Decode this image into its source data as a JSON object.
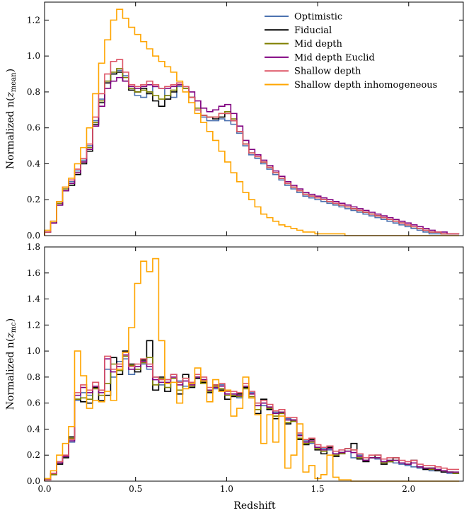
{
  "chart_data": [
    {
      "type": "line",
      "step": true,
      "ylabel_text": "Normalized n(",
      "ylabel_var": "z",
      "ylabel_sub": "mean",
      "ylabel_close": ")",
      "xlim": [
        0.0,
        2.3
      ],
      "ylim": [
        0.0,
        1.3
      ],
      "xticks": [
        0.0,
        0.5,
        1.0,
        1.5,
        2.0
      ],
      "yticks": [
        0.0,
        0.2,
        0.4,
        0.6,
        0.8,
        1.0,
        1.2
      ],
      "yticklabels": [
        "0.0",
        "0.2",
        "0.4",
        "0.6",
        "0.8",
        "1.0",
        "1.2"
      ],
      "bin_width": 0.033,
      "legend_position": "top-right",
      "series": [
        {
          "name": "Optimistic",
          "color": "#4c72b0",
          "values": [
            0.02,
            0.08,
            0.18,
            0.27,
            0.3,
            0.36,
            0.42,
            0.5,
            0.64,
            0.76,
            0.86,
            0.9,
            0.92,
            0.89,
            0.82,
            0.78,
            0.77,
            0.8,
            0.83,
            0.82,
            0.78,
            0.77,
            0.83,
            0.82,
            0.77,
            0.7,
            0.66,
            0.64,
            0.64,
            0.65,
            0.64,
            0.62,
            0.57,
            0.5,
            0.45,
            0.43,
            0.4,
            0.37,
            0.34,
            0.31,
            0.28,
            0.26,
            0.24,
            0.22,
            0.21,
            0.2,
            0.19,
            0.18,
            0.17,
            0.16,
            0.15,
            0.14,
            0.13,
            0.12,
            0.11,
            0.1,
            0.09,
            0.08,
            0.07,
            0.06,
            0.05,
            0.04,
            0.03,
            0.02,
            0.01,
            0.01,
            0.01,
            0.01,
            0.01
          ]
        },
        {
          "name": "Fiducial",
          "color": "#000000",
          "values": [
            0.02,
            0.07,
            0.17,
            0.25,
            0.28,
            0.34,
            0.4,
            0.47,
            0.62,
            0.74,
            0.85,
            0.9,
            0.91,
            0.86,
            0.81,
            0.8,
            0.82,
            0.79,
            0.75,
            0.72,
            0.76,
            0.8,
            0.84,
            0.82,
            0.77,
            0.7,
            0.67,
            0.66,
            0.65,
            0.66,
            0.68,
            0.64,
            0.58,
            0.51,
            0.46,
            0.44,
            0.41,
            0.38,
            0.35,
            0.32,
            0.29,
            0.27,
            0.25,
            0.23,
            0.22,
            0.21,
            0.2,
            0.19,
            0.18,
            0.17,
            0.16,
            0.15,
            0.14,
            0.13,
            0.12,
            0.11,
            0.1,
            0.09,
            0.08,
            0.07,
            0.06,
            0.05,
            0.04,
            0.03,
            0.02,
            0.02,
            0.01,
            0.01,
            0.01
          ]
        },
        {
          "name": "Mid depth",
          "color": "#808000",
          "values": [
            0.02,
            0.07,
            0.18,
            0.26,
            0.29,
            0.35,
            0.41,
            0.49,
            0.63,
            0.75,
            0.86,
            0.91,
            0.93,
            0.88,
            0.82,
            0.8,
            0.81,
            0.8,
            0.78,
            0.76,
            0.78,
            0.81,
            0.84,
            0.82,
            0.77,
            0.71,
            0.67,
            0.66,
            0.66,
            0.68,
            0.69,
            0.65,
            0.58,
            0.51,
            0.46,
            0.44,
            0.41,
            0.38,
            0.35,
            0.32,
            0.29,
            0.27,
            0.25,
            0.23,
            0.22,
            0.21,
            0.2,
            0.19,
            0.18,
            0.17,
            0.16,
            0.15,
            0.14,
            0.13,
            0.12,
            0.11,
            0.1,
            0.09,
            0.08,
            0.07,
            0.06,
            0.05,
            0.04,
            0.03,
            0.02,
            0.02,
            0.01,
            0.01,
            0.01
          ]
        },
        {
          "name": "Mid depth Euclid",
          "color": "#800080",
          "values": [
            0.02,
            0.07,
            0.17,
            0.25,
            0.29,
            0.35,
            0.41,
            0.48,
            0.61,
            0.72,
            0.82,
            0.86,
            0.88,
            0.86,
            0.83,
            0.82,
            0.83,
            0.84,
            0.83,
            0.82,
            0.82,
            0.83,
            0.84,
            0.83,
            0.8,
            0.75,
            0.71,
            0.69,
            0.7,
            0.72,
            0.73,
            0.68,
            0.61,
            0.53,
            0.48,
            0.45,
            0.42,
            0.39,
            0.36,
            0.33,
            0.3,
            0.28,
            0.26,
            0.24,
            0.23,
            0.22,
            0.21,
            0.2,
            0.19,
            0.18,
            0.17,
            0.16,
            0.15,
            0.14,
            0.13,
            0.12,
            0.11,
            0.1,
            0.09,
            0.08,
            0.07,
            0.06,
            0.05,
            0.04,
            0.03,
            0.02,
            0.02,
            0.01,
            0.01
          ]
        },
        {
          "name": "Shallow depth",
          "color": "#dd5566",
          "values": [
            0.02,
            0.08,
            0.19,
            0.27,
            0.31,
            0.37,
            0.43,
            0.51,
            0.66,
            0.79,
            0.9,
            0.97,
            0.98,
            0.91,
            0.84,
            0.83,
            0.84,
            0.86,
            0.84,
            0.82,
            0.83,
            0.84,
            0.85,
            0.83,
            0.77,
            0.7,
            0.67,
            0.66,
            0.66,
            0.68,
            0.68,
            0.64,
            0.58,
            0.51,
            0.46,
            0.44,
            0.41,
            0.38,
            0.35,
            0.32,
            0.29,
            0.27,
            0.25,
            0.23,
            0.22,
            0.21,
            0.2,
            0.19,
            0.18,
            0.17,
            0.16,
            0.15,
            0.14,
            0.13,
            0.12,
            0.11,
            0.1,
            0.09,
            0.08,
            0.07,
            0.06,
            0.05,
            0.04,
            0.03,
            0.02,
            0.02,
            0.01,
            0.01,
            0.01
          ]
        },
        {
          "name": "Shallow depth inhomogeneous",
          "color": "#ffa500",
          "values": [
            0.03,
            0.08,
            0.19,
            0.27,
            0.32,
            0.4,
            0.49,
            0.6,
            0.79,
            0.96,
            1.09,
            1.2,
            1.26,
            1.21,
            1.16,
            1.12,
            1.08,
            1.04,
            1.0,
            0.97,
            0.94,
            0.91,
            0.86,
            0.8,
            0.74,
            0.68,
            0.63,
            0.58,
            0.53,
            0.47,
            0.41,
            0.35,
            0.3,
            0.24,
            0.2,
            0.16,
            0.12,
            0.1,
            0.08,
            0.06,
            0.05,
            0.04,
            0.03,
            0.02,
            0.02,
            0.01,
            0.01,
            0.01,
            0.01,
            0.01,
            0.0,
            0.0,
            0.0,
            0.0,
            0.0,
            0.0,
            0.0,
            0.0,
            0.0,
            0.0,
            0.0,
            0.0,
            0.0,
            0.0,
            0.0,
            0.0,
            0.0,
            0.0,
            0.0
          ]
        }
      ]
    },
    {
      "type": "line",
      "step": true,
      "xlabel": "Redshift",
      "ylabel_text": "Normalized n(",
      "ylabel_var": "z",
      "ylabel_sub": "mc",
      "ylabel_close": ")",
      "xlim": [
        0.0,
        2.3
      ],
      "ylim": [
        0.0,
        1.8
      ],
      "xticks": [
        0.0,
        0.5,
        1.0,
        1.5,
        2.0
      ],
      "xticklabels": [
        "0.0",
        "0.5",
        "1.0",
        "1.5",
        "2.0"
      ],
      "yticks": [
        0.0,
        0.2,
        0.4,
        0.6,
        0.8,
        1.0,
        1.2,
        1.4,
        1.6,
        1.8
      ],
      "yticklabels": [
        "0.0",
        "0.2",
        "0.4",
        "0.6",
        "0.8",
        "1.0",
        "1.2",
        "1.4",
        "1.6",
        "1.8"
      ],
      "bin_width": 0.033,
      "series": [
        {
          "name": "Optimistic",
          "color": "#4c72b0",
          "values": [
            0.01,
            0.06,
            0.14,
            0.19,
            0.3,
            0.62,
            0.68,
            0.66,
            0.73,
            0.7,
            0.86,
            0.8,
            0.92,
            0.94,
            0.82,
            0.86,
            0.9,
            0.86,
            0.8,
            0.74,
            0.78,
            0.82,
            0.77,
            0.73,
            0.75,
            0.8,
            0.78,
            0.7,
            0.71,
            0.74,
            0.69,
            0.67,
            0.64,
            0.73,
            0.68,
            0.6,
            0.58,
            0.56,
            0.53,
            0.52,
            0.48,
            0.46,
            0.36,
            0.31,
            0.29,
            0.26,
            0.25,
            0.24,
            0.21,
            0.22,
            0.23,
            0.18,
            0.2,
            0.16,
            0.18,
            0.17,
            0.15,
            0.16,
            0.14,
            0.13,
            0.12,
            0.11,
            0.1,
            0.09,
            0.08,
            0.08,
            0.07,
            0.06,
            0.06
          ]
        },
        {
          "name": "Fiducial",
          "color": "#000000",
          "values": [
            0.01,
            0.05,
            0.13,
            0.18,
            0.34,
            0.63,
            0.61,
            0.6,
            0.72,
            0.62,
            0.66,
            0.95,
            0.82,
            1.0,
            0.9,
            0.84,
            0.93,
            1.08,
            0.7,
            0.8,
            0.69,
            0.76,
            0.67,
            0.82,
            0.72,
            0.79,
            0.76,
            0.68,
            0.74,
            0.7,
            0.63,
            0.65,
            0.67,
            0.72,
            0.64,
            0.52,
            0.63,
            0.55,
            0.48,
            0.53,
            0.44,
            0.47,
            0.32,
            0.28,
            0.32,
            0.24,
            0.21,
            0.26,
            0.19,
            0.22,
            0.25,
            0.29,
            0.17,
            0.15,
            0.18,
            0.2,
            0.13,
            0.15,
            0.18,
            0.14,
            0.13,
            0.16,
            0.11,
            0.09,
            0.1,
            0.08,
            0.07,
            0.07,
            0.06
          ]
        },
        {
          "name": "Mid depth",
          "color": "#808000",
          "values": [
            0.01,
            0.05,
            0.14,
            0.19,
            0.33,
            0.63,
            0.64,
            0.63,
            0.71,
            0.66,
            0.75,
            0.9,
            0.85,
            0.96,
            0.89,
            0.86,
            0.91,
            0.95,
            0.74,
            0.79,
            0.72,
            0.79,
            0.7,
            0.79,
            0.73,
            0.8,
            0.75,
            0.69,
            0.73,
            0.71,
            0.66,
            0.66,
            0.65,
            0.71,
            0.65,
            0.55,
            0.6,
            0.56,
            0.5,
            0.52,
            0.45,
            0.46,
            0.33,
            0.29,
            0.3,
            0.25,
            0.23,
            0.25,
            0.2,
            0.21,
            0.23,
            0.24,
            0.18,
            0.16,
            0.18,
            0.18,
            0.14,
            0.15,
            0.16,
            0.14,
            0.13,
            0.14,
            0.11,
            0.1,
            0.09,
            0.09,
            0.08,
            0.07,
            0.06
          ]
        },
        {
          "name": "Mid depth Euclid",
          "color": "#800080",
          "values": [
            0.01,
            0.06,
            0.14,
            0.19,
            0.31,
            0.66,
            0.72,
            0.68,
            0.73,
            0.68,
            0.94,
            0.84,
            0.88,
            0.97,
            0.86,
            0.88,
            0.92,
            0.88,
            0.78,
            0.76,
            0.76,
            0.8,
            0.74,
            0.77,
            0.74,
            0.8,
            0.78,
            0.7,
            0.72,
            0.73,
            0.67,
            0.67,
            0.66,
            0.73,
            0.67,
            0.58,
            0.6,
            0.57,
            0.52,
            0.53,
            0.47,
            0.47,
            0.35,
            0.3,
            0.31,
            0.26,
            0.24,
            0.25,
            0.21,
            0.22,
            0.23,
            0.22,
            0.19,
            0.16,
            0.18,
            0.18,
            0.15,
            0.16,
            0.16,
            0.14,
            0.13,
            0.14,
            0.11,
            0.1,
            0.1,
            0.09,
            0.08,
            0.07,
            0.07
          ]
        },
        {
          "name": "Shallow depth",
          "color": "#dd5566",
          "values": [
            0.01,
            0.06,
            0.15,
            0.2,
            0.32,
            0.68,
            0.74,
            0.7,
            0.76,
            0.7,
            0.96,
            0.86,
            0.9,
            0.99,
            0.88,
            0.9,
            0.94,
            0.9,
            0.8,
            0.78,
            0.78,
            0.82,
            0.76,
            0.79,
            0.76,
            0.82,
            0.8,
            0.72,
            0.74,
            0.75,
            0.69,
            0.69,
            0.68,
            0.75,
            0.69,
            0.6,
            0.62,
            0.59,
            0.54,
            0.55,
            0.49,
            0.49,
            0.37,
            0.32,
            0.33,
            0.28,
            0.26,
            0.27,
            0.23,
            0.24,
            0.25,
            0.24,
            0.21,
            0.18,
            0.2,
            0.2,
            0.17,
            0.18,
            0.18,
            0.16,
            0.15,
            0.16,
            0.13,
            0.12,
            0.12,
            0.11,
            0.1,
            0.09,
            0.09
          ]
        },
        {
          "name": "Shallow depth inhomogeneous",
          "color": "#ffa500",
          "values": [
            0.02,
            0.08,
            0.2,
            0.29,
            0.42,
            1.0,
            0.81,
            0.56,
            0.62,
            0.61,
            0.69,
            0.62,
            0.86,
            0.99,
            1.18,
            1.52,
            1.69,
            1.61,
            1.71,
            1.08,
            0.75,
            0.76,
            0.6,
            0.71,
            0.75,
            0.87,
            0.77,
            0.61,
            0.78,
            0.69,
            0.7,
            0.5,
            0.56,
            0.8,
            0.64,
            0.51,
            0.29,
            0.51,
            0.3,
            0.5,
            0.1,
            0.2,
            0.44,
            0.07,
            0.12,
            0.02,
            0.05,
            0.2,
            0.03,
            0.01,
            0.01,
            0.0,
            0.0,
            0.0,
            0.0,
            0.0,
            0.0,
            0.0,
            0.0,
            0.0,
            0.0,
            0.0,
            0.0,
            0.0,
            0.0,
            0.0,
            0.0,
            0.0,
            0.0
          ]
        }
      ]
    }
  ]
}
